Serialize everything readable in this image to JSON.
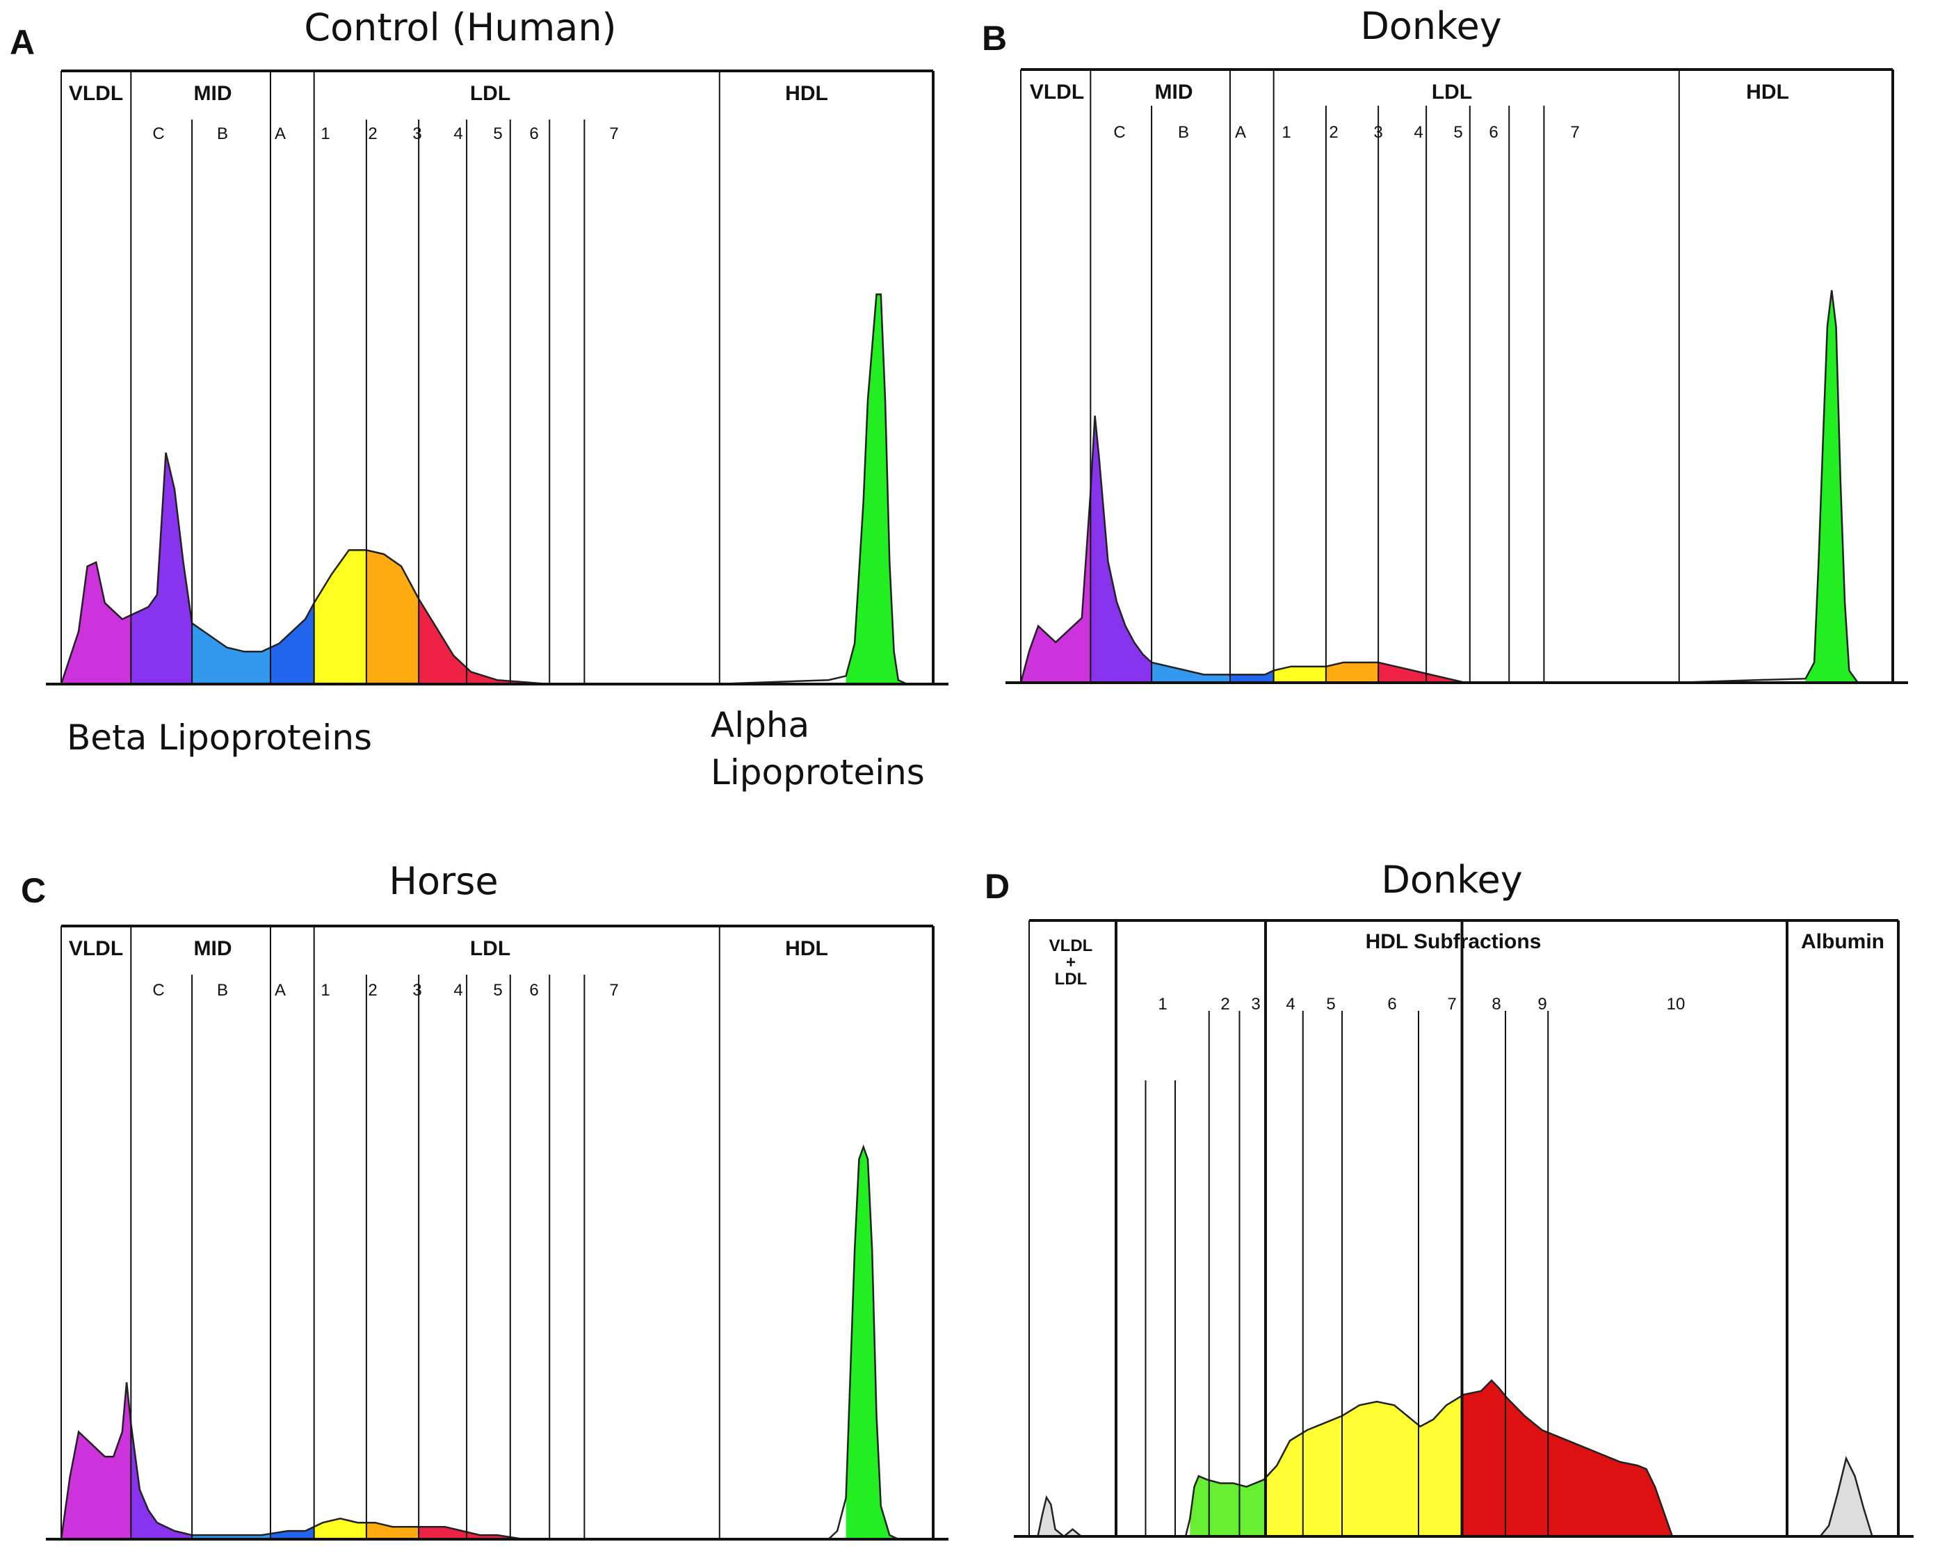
{
  "chart_data": [
    {
      "panel": "A",
      "type": "area",
      "title": "Control (Human)",
      "region_labels": [
        "VLDL",
        "MID",
        "LDL",
        "HDL"
      ],
      "sub_labels": [
        "C",
        "B",
        "A",
        "1",
        "2",
        "3",
        "4",
        "5",
        "6",
        "7"
      ],
      "annotations": [
        "Beta Lipoproteins",
        "Alpha Lipoproteins"
      ],
      "x_range": [
        0,
        100
      ],
      "y_range": [
        0,
        100
      ],
      "boundaries": [
        8,
        15,
        24,
        29,
        35,
        41,
        46.5,
        51.5,
        56,
        60,
        75.5
      ],
      "segments": [
        {
          "from": 0,
          "to": 8,
          "color": "#cc33dd"
        },
        {
          "from": 8,
          "to": 15,
          "color": "#8833ee"
        },
        {
          "from": 15,
          "to": 24,
          "color": "#3399ee"
        },
        {
          "from": 24,
          "to": 29,
          "color": "#2266ee"
        },
        {
          "from": 29,
          "to": 35,
          "color": "#ffff22"
        },
        {
          "from": 35,
          "to": 41,
          "color": "#ffaa11"
        },
        {
          "from": 41,
          "to": 56,
          "color": "#ee2244"
        },
        {
          "from": 90,
          "to": 100,
          "color": "#22ee22"
        }
      ],
      "profile": [
        [
          0,
          0
        ],
        [
          2,
          13
        ],
        [
          3,
          29
        ],
        [
          4,
          30
        ],
        [
          5,
          20
        ],
        [
          6,
          18
        ],
        [
          7,
          16
        ],
        [
          8,
          17
        ],
        [
          9,
          18
        ],
        [
          10,
          19
        ],
        [
          11,
          22
        ],
        [
          12,
          57
        ],
        [
          13,
          48
        ],
        [
          14,
          30
        ],
        [
          15,
          15
        ],
        [
          17,
          12
        ],
        [
          19,
          9
        ],
        [
          21,
          8
        ],
        [
          23,
          8
        ],
        [
          25,
          10
        ],
        [
          27,
          14
        ],
        [
          28,
          16
        ],
        [
          29,
          20
        ],
        [
          31,
          27
        ],
        [
          33,
          33
        ],
        [
          35,
          33
        ],
        [
          37,
          32
        ],
        [
          39,
          29
        ],
        [
          41,
          21
        ],
        [
          43,
          14
        ],
        [
          45,
          7
        ],
        [
          47,
          3
        ],
        [
          50,
          1
        ],
        [
          56,
          0
        ],
        [
          60,
          0
        ],
        [
          75,
          0
        ],
        [
          88,
          1
        ],
        [
          90,
          2
        ],
        [
          91,
          10
        ],
        [
          92,
          45
        ],
        [
          92.5,
          70
        ],
        [
          93.5,
          96
        ],
        [
          94,
          96
        ],
        [
          94.5,
          70
        ],
        [
          95,
          30
        ],
        [
          95.5,
          8
        ],
        [
          96,
          1
        ],
        [
          97,
          0
        ],
        [
          100,
          0
        ]
      ]
    },
    {
      "panel": "B",
      "type": "area",
      "title": "Donkey",
      "region_labels": [
        "VLDL",
        "MID",
        "LDL",
        "HDL"
      ],
      "sub_labels": [
        "C",
        "B",
        "A",
        "1",
        "2",
        "3",
        "4",
        "5",
        "6",
        "7"
      ],
      "x_range": [
        0,
        100
      ],
      "y_range": [
        0,
        100
      ],
      "boundaries": [
        8,
        15,
        24,
        29,
        35,
        41,
        46.5,
        51.5,
        56,
        60,
        75.5
      ],
      "segments": [
        {
          "from": 0,
          "to": 8,
          "color": "#cc33dd"
        },
        {
          "from": 8,
          "to": 15,
          "color": "#8833ee"
        },
        {
          "from": 15,
          "to": 24,
          "color": "#3399ee"
        },
        {
          "from": 24,
          "to": 29,
          "color": "#2266ee"
        },
        {
          "from": 29,
          "to": 35,
          "color": "#ffff22"
        },
        {
          "from": 35,
          "to": 41,
          "color": "#ffaa11"
        },
        {
          "from": 41,
          "to": 56,
          "color": "#ee2244"
        },
        {
          "from": 90,
          "to": 100,
          "color": "#22ee22"
        }
      ],
      "profile": [
        [
          0,
          0
        ],
        [
          1,
          8
        ],
        [
          2,
          14
        ],
        [
          3,
          12
        ],
        [
          4,
          10
        ],
        [
          5,
          12
        ],
        [
          6,
          14
        ],
        [
          7,
          16
        ],
        [
          8,
          47
        ],
        [
          8.5,
          66
        ],
        [
          9,
          55
        ],
        [
          10,
          30
        ],
        [
          11,
          20
        ],
        [
          12,
          14
        ],
        [
          13,
          10
        ],
        [
          14,
          7
        ],
        [
          15,
          5
        ],
        [
          17,
          4
        ],
        [
          19,
          3
        ],
        [
          21,
          2
        ],
        [
          24,
          2
        ],
        [
          26,
          2
        ],
        [
          28,
          2
        ],
        [
          29,
          3
        ],
        [
          31,
          4
        ],
        [
          33,
          4
        ],
        [
          35,
          4
        ],
        [
          37,
          5
        ],
        [
          39,
          5
        ],
        [
          41,
          5
        ],
        [
          43,
          4
        ],
        [
          45,
          3
        ],
        [
          47,
          2
        ],
        [
          49,
          1
        ],
        [
          51,
          0
        ],
        [
          56,
          0
        ],
        [
          75,
          0
        ],
        [
          82,
          0.5
        ],
        [
          90,
          1
        ],
        [
          91,
          5
        ],
        [
          91.5,
          30
        ],
        [
          92,
          60
        ],
        [
          92.5,
          88
        ],
        [
          93,
          97
        ],
        [
          93.5,
          88
        ],
        [
          94,
          50
        ],
        [
          94.5,
          20
        ],
        [
          95,
          3
        ],
        [
          96,
          0
        ],
        [
          100,
          0
        ]
      ]
    },
    {
      "panel": "C",
      "type": "area",
      "title": "Horse",
      "region_labels": [
        "VLDL",
        "MID",
        "LDL",
        "HDL"
      ],
      "sub_labels": [
        "C",
        "B",
        "A",
        "1",
        "2",
        "3",
        "4",
        "5",
        "6",
        "7"
      ],
      "x_range": [
        0,
        100
      ],
      "y_range": [
        0,
        100
      ],
      "boundaries": [
        8,
        15,
        24,
        29,
        35,
        41,
        46.5,
        51.5,
        56,
        60,
        75.5
      ],
      "segments": [
        {
          "from": 0,
          "to": 8,
          "color": "#cc33dd"
        },
        {
          "from": 8,
          "to": 15,
          "color": "#8833ee"
        },
        {
          "from": 15,
          "to": 24,
          "color": "#3399ee"
        },
        {
          "from": 24,
          "to": 29,
          "color": "#2266ee"
        },
        {
          "from": 29,
          "to": 35,
          "color": "#ffff22"
        },
        {
          "from": 35,
          "to": 41,
          "color": "#ffaa11"
        },
        {
          "from": 41,
          "to": 56,
          "color": "#ee2244"
        },
        {
          "from": 90,
          "to": 100,
          "color": "#22ee22"
        }
      ],
      "profile": [
        [
          0,
          0
        ],
        [
          1,
          15
        ],
        [
          2,
          26
        ],
        [
          3,
          24
        ],
        [
          4,
          22
        ],
        [
          5,
          20
        ],
        [
          6,
          20
        ],
        [
          7,
          26
        ],
        [
          7.5,
          38
        ],
        [
          8,
          28
        ],
        [
          9,
          12
        ],
        [
          10,
          7
        ],
        [
          11,
          4
        ],
        [
          12,
          3
        ],
        [
          13,
          2
        ],
        [
          15,
          1
        ],
        [
          17,
          1
        ],
        [
          20,
          1
        ],
        [
          23,
          1
        ],
        [
          26,
          2
        ],
        [
          28,
          2
        ],
        [
          30,
          4
        ],
        [
          32,
          5
        ],
        [
          34,
          4
        ],
        [
          36,
          4
        ],
        [
          38,
          3
        ],
        [
          40,
          3
        ],
        [
          42,
          3
        ],
        [
          44,
          3
        ],
        [
          46,
          2
        ],
        [
          48,
          1
        ],
        [
          50,
          1
        ],
        [
          53,
          0
        ],
        [
          56,
          0
        ],
        [
          75,
          0
        ],
        [
          88,
          0
        ],
        [
          89,
          2
        ],
        [
          90,
          10
        ],
        [
          90.5,
          40
        ],
        [
          91,
          70
        ],
        [
          91.5,
          92
        ],
        [
          92,
          95
        ],
        [
          92.5,
          92
        ],
        [
          93,
          70
        ],
        [
          93.5,
          30
        ],
        [
          94,
          8
        ],
        [
          95,
          1
        ],
        [
          96,
          0
        ],
        [
          100,
          0
        ]
      ]
    },
    {
      "panel": "D",
      "type": "area",
      "title": "Donkey",
      "region_labels": [
        "VLDL + LDL",
        "HDL Subfractions",
        "Albumin"
      ],
      "sub_labels": [
        "1",
        "2",
        "3",
        "4",
        "5",
        "6",
        "7",
        "8",
        "9",
        "10"
      ],
      "x_range": [
        0,
        100
      ],
      "y_range": [
        0,
        100
      ],
      "boundaries_thick": [
        10,
        27.2,
        49.8,
        87.2
      ],
      "boundaries_thin": [
        13.4,
        16.8,
        20.7,
        24.2,
        31.5,
        36,
        44.8,
        54.8,
        59.7
      ],
      "short_boundaries": [
        13.4,
        16.8
      ],
      "segments": [
        {
          "from": 0,
          "to": 10,
          "color": "#dddddd"
        },
        {
          "from": 18.5,
          "to": 27.2,
          "color": "#66ee33"
        },
        {
          "from": 27.2,
          "to": 49.8,
          "color": "#ffff33"
        },
        {
          "from": 49.8,
          "to": 74,
          "color": "#dd1111"
        },
        {
          "from": 87.2,
          "to": 100,
          "color": "#dddddd"
        }
      ],
      "profile": [
        [
          0,
          0
        ],
        [
          1,
          0
        ],
        [
          1.5,
          6
        ],
        [
          2,
          11
        ],
        [
          2.5,
          9
        ],
        [
          3,
          2
        ],
        [
          4,
          0
        ],
        [
          4.5,
          1
        ],
        [
          5,
          2
        ],
        [
          6,
          0
        ],
        [
          18,
          0
        ],
        [
          18.5,
          5
        ],
        [
          19,
          14
        ],
        [
          19.5,
          17
        ],
        [
          20.5,
          16
        ],
        [
          22,
          15
        ],
        [
          23.5,
          15
        ],
        [
          25,
          14
        ],
        [
          27,
          16
        ],
        [
          28.5,
          20
        ],
        [
          30,
          27
        ],
        [
          32,
          30
        ],
        [
          34,
          32
        ],
        [
          36,
          34
        ],
        [
          38,
          37
        ],
        [
          40,
          38
        ],
        [
          42,
          37
        ],
        [
          43.5,
          34
        ],
        [
          45,
          31
        ],
        [
          46.5,
          33
        ],
        [
          48,
          37
        ],
        [
          50,
          40
        ],
        [
          52,
          41
        ],
        [
          53.2,
          44
        ],
        [
          54,
          42
        ],
        [
          55,
          39
        ],
        [
          57,
          34
        ],
        [
          59,
          30
        ],
        [
          62,
          27
        ],
        [
          65,
          24
        ],
        [
          68,
          21
        ],
        [
          70,
          20
        ],
        [
          71,
          19
        ],
        [
          72,
          14
        ],
        [
          73,
          7
        ],
        [
          74,
          0
        ],
        [
          85,
          0
        ],
        [
          91,
          0
        ],
        [
          92,
          3
        ],
        [
          93,
          12
        ],
        [
          94,
          22
        ],
        [
          95,
          17
        ],
        [
          96,
          8
        ],
        [
          97,
          0
        ],
        [
          100,
          0
        ]
      ]
    }
  ]
}
